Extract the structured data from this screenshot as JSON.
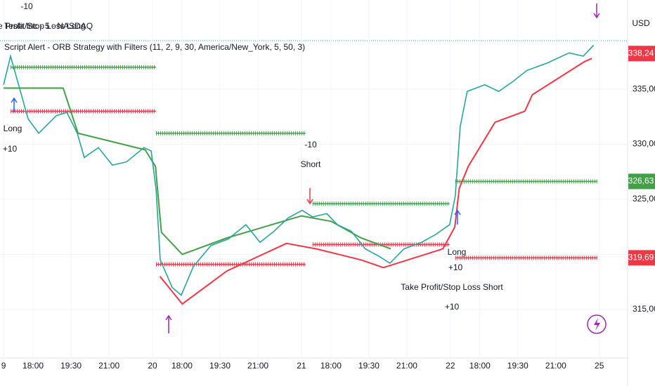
{
  "chart_data": {
    "type": "line",
    "title": "Tesla Inc · 5 · NASDAQ",
    "subtitle": "Script Alert - ORB Strategy with Filters (11, 2, 9, 30, America/New_York, 5, 50, 3)",
    "currency": "USD",
    "x": [
      0,
      0.047,
      0.165,
      0.236,
      0.354,
      0.425,
      0.495,
      0.542,
      0.637,
      0.731,
      0.825,
      0.943,
      0.991,
      1.024,
      1.052,
      1.132,
      1.193,
      1.274,
      1.392,
      1.509,
      1.627,
      1.722,
      1.816,
      1.91,
      2.005,
      2.075,
      2.17,
      2.241,
      2.335,
      2.429,
      2.524,
      2.594,
      2.689,
      2.807,
      2.901,
      2.995,
      3.033,
      3.066,
      3.113,
      3.231,
      3.325,
      3.42,
      3.514,
      3.656,
      3.797,
      3.892,
      3.962
    ],
    "series": [
      {
        "color": "#26a69a",
        "values": [
          335.4,
          338,
          332.3,
          331,
          332.6,
          332.9,
          331,
          328.8,
          329.7,
          328.1,
          328.4,
          329.7,
          329.4,
          325.9,
          319.5,
          317,
          316.3,
          318.9,
          320.8,
          321.4,
          322.7,
          321.1,
          322.1,
          323.3,
          324,
          323.4,
          323.7,
          322.7,
          322.1,
          320.5,
          319.8,
          319.2,
          320.5,
          321.1,
          321.8,
          322.7,
          325.3,
          331.6,
          334.8,
          335.4,
          334.8,
          335.7,
          336.7,
          337.4,
          338.3,
          338,
          339
        ]
      }
    ],
    "trails": [
      {
        "color": "#43a047",
        "x": [
          0,
          0.4,
          0.5,
          0.95,
          1.02,
          1.06,
          1.2,
          1.5,
          2.0,
          2.2,
          2.4,
          2.6
        ],
        "values": [
          335.1,
          335.1,
          331,
          329.5,
          328,
          322,
          320,
          321.5,
          323.5,
          323,
          321.5,
          320.5
        ]
      },
      {
        "color": "#f23645",
        "x": [
          1.05,
          1.2,
          1.5,
          1.9,
          2.1,
          2.4,
          2.55,
          2.95,
          3.03,
          3.06,
          3.12,
          3.3,
          3.5,
          3.55,
          3.9,
          3.95
        ],
        "values": [
          318,
          315.5,
          318.5,
          321,
          320.5,
          319.5,
          318.8,
          320.5,
          322.5,
          326,
          328,
          332,
          333,
          334.5,
          337.5,
          337.8
        ]
      }
    ],
    "levels": [
      {
        "x": [
          0.047,
          1.024
        ],
        "value": 337,
        "color": "#43a047"
      },
      {
        "x": [
          0.047,
          1.024
        ],
        "value": 333,
        "color": "#f23645"
      },
      {
        "x": [
          1.024,
          2.028
        ],
        "value": 331,
        "color": "#43a047"
      },
      {
        "x": [
          1.024,
          2.028
        ],
        "value": 319.1,
        "color": "#f23645"
      },
      {
        "x": [
          2.075,
          2.995
        ],
        "value": 324.6,
        "color": "#43a047"
      },
      {
        "x": [
          2.075,
          2.995
        ],
        "value": 320.9,
        "color": "#f23645"
      },
      {
        "x": [
          3.033,
          3.986
        ],
        "value": 326.63,
        "color": "#43a047"
      },
      {
        "x": [
          3.033,
          3.986
        ],
        "value": 319.69,
        "color": "#f23645"
      }
    ],
    "price_labels": [
      {
        "value": 338.24,
        "label": "338,24",
        "color": "#f23645"
      },
      {
        "value": 326.63,
        "label": "326,63",
        "color": "#43a047"
      },
      {
        "value": 319.69,
        "label": "319,69",
        "color": "#f23645"
      }
    ],
    "annotations": [
      "-10",
      "Take Profit/Stop Loss Long",
      "Long",
      "+10",
      "-10",
      "Short",
      "Long",
      "+10",
      "Take Profit/Stop Loss Short",
      "+10"
    ],
    "xlim": [
      -0.024,
      4.19
    ],
    "ylim": [
      310.6,
      343.1
    ],
    "yticks": [
      {
        "value": 315,
        "label": "315,00"
      },
      {
        "value": 320,
        "label": "320,00"
      },
      {
        "value": 325,
        "label": "325,00"
      },
      {
        "value": 330,
        "label": "330,00"
      },
      {
        "value": 335,
        "label": "335,00"
      }
    ],
    "xticks": [
      {
        "value": 0,
        "label": "9"
      },
      {
        "value": 0.198,
        "label": "18:00"
      },
      {
        "value": 0.453,
        "label": "19:30"
      },
      {
        "value": 0.708,
        "label": "21:00"
      },
      {
        "value": 1,
        "label": "20"
      },
      {
        "value": 1.198,
        "label": "18:00"
      },
      {
        "value": 1.453,
        "label": "19:30"
      },
      {
        "value": 1.708,
        "label": "21:00"
      },
      {
        "value": 2,
        "label": "21"
      },
      {
        "value": 2.198,
        "label": "18:00"
      },
      {
        "value": 2.453,
        "label": "19:30"
      },
      {
        "value": 2.708,
        "label": "21:00"
      },
      {
        "value": 3,
        "label": "22"
      },
      {
        "value": 3.198,
        "label": "18:00"
      },
      {
        "value": 3.453,
        "label": "19:30"
      },
      {
        "value": 3.708,
        "label": "21:00"
      },
      {
        "value": 4,
        "label": "25"
      }
    ],
    "grid": true
  }
}
